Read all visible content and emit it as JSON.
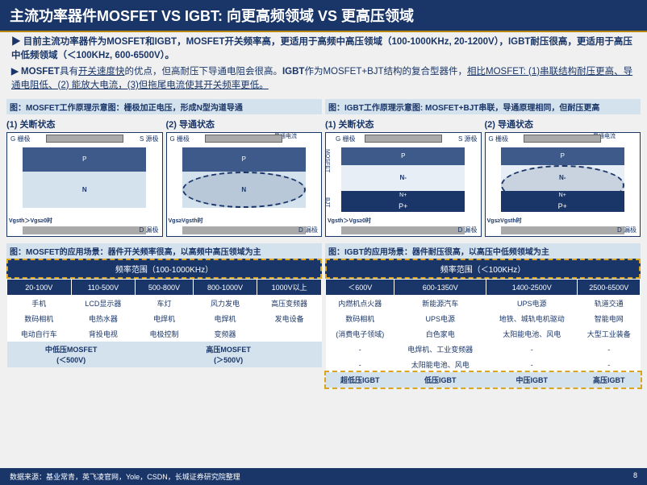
{
  "header": {
    "title": "主流功率器件MOSFET VS IGBT:   向更高频领域 VS 更高压领域"
  },
  "intro": {
    "p1_prefix": "▶ 目前主流功率器件为MOSFET和IGBT，MOSFET开关频率高，更适用于高频中高压领域（100-1000KHz, 20-1200V），IGBT耐压很高，更适用于高压中低频领域（＜100KHz, 600-6500V）。",
    "p2_prefix": "▶ MOSFET",
    "p2_mid1": "具有",
    "p2_u1": "开关速度快",
    "p2_mid2": "的优点，但高耐压下导通电阻会很高。",
    "p2_bold": "IGBT",
    "p2_mid3": "作为MOSFET+BJT结构的复合型器件，",
    "p2_u2": "相比MOSFET:  (1)串联结构耐压更高、导通电阻低、(2) 能放大电流，(3)但拖尾电流使其开关频率更低。"
  },
  "mosfet": {
    "caption": "图：MOSFET工作原理示意图：栅极加正电压，形成N型沟道导通",
    "state1": "(1) 关断状态",
    "state2": "(2) 导通状态",
    "app_caption": "图：MOSFET的应用场景：器件开关频率很高，以高频中高压领域为主",
    "freq_header": "频率范围（100-1000KHz）",
    "cols": [
      "20-100V",
      "110-500V",
      "500-800V",
      "800-1000V",
      "1000V以上"
    ],
    "rows": [
      [
        "手机",
        "LCD显示器",
        "车灯",
        "风力发电",
        "高压变频器"
      ],
      [
        "数码相机",
        "电热水器",
        "电焊机",
        "电焊机",
        "发电设备"
      ],
      [
        "电动自行车",
        "背投电视",
        "电极控制",
        "变频器",
        ""
      ]
    ],
    "catrow": [
      {
        "label": "中低压MOSFET\n(＜500V)",
        "span": 2
      },
      {
        "label": "高压MOSFET\n(＞500V)",
        "span": 3
      }
    ]
  },
  "igbt": {
    "caption": "图：IGBT工作原理示意图: MOSFET+BJT串联，导通原理相同，但耐压更高",
    "state1": "(1) 关断状态",
    "state2": "(2) 导通状态",
    "app_caption": "图：IGBT的应用场景：器件耐压很高，以高压中低频领域为主",
    "freq_header": "频率范围（＜100KHz）",
    "cols": [
      "＜600V",
      "600-1350V",
      "1400-2500V",
      "2500-6500V"
    ],
    "rows": [
      [
        "内燃机点火器",
        "新能源汽车",
        "UPS电源",
        "轨道交通"
      ],
      [
        "数码相机",
        "UPS电源",
        "地铁、城轨电机驱动",
        "智能电网"
      ],
      [
        "(消费电子领域)",
        "白色家电",
        "太阳能电池、风电",
        "大型工业装备"
      ],
      [
        "-",
        "电焊机、工业变频器",
        "-",
        "-"
      ],
      [
        "-",
        "太阳能电池、风电",
        "-",
        "-"
      ]
    ],
    "catrow": [
      {
        "label": "超低压IGBT",
        "span": 1
      },
      {
        "label": "低压IGBT",
        "span": 1
      },
      {
        "label": "中压IGBT",
        "span": 1
      },
      {
        "label": "高压IGBT",
        "span": 1
      }
    ]
  },
  "diagram": {
    "G": "G 栅极",
    "S": "S 源极",
    "D": "D 漏极",
    "N": "N",
    "Nplus": "N+",
    "P": "P",
    "Nminus": "N-",
    "Pplus": "P+",
    "channel": "N型\n沟道",
    "current": "导通电流",
    "vgs_off": "Vgsth＞Vgs≥0时",
    "vgs_on": "Vgs≥Vgsth时",
    "mosfet_lbl": "MOSFET",
    "bjt_lbl": "BJT"
  },
  "footer": {
    "source": "数据来源：基业常青，英飞凌官网，Yole，CSDN，长城证券研究院整理",
    "page": "8"
  },
  "colors": {
    "navy": "#1a3668",
    "gold": "#daa520",
    "lightblue": "#d4e2ee",
    "midblue": "#3d5a8a"
  }
}
